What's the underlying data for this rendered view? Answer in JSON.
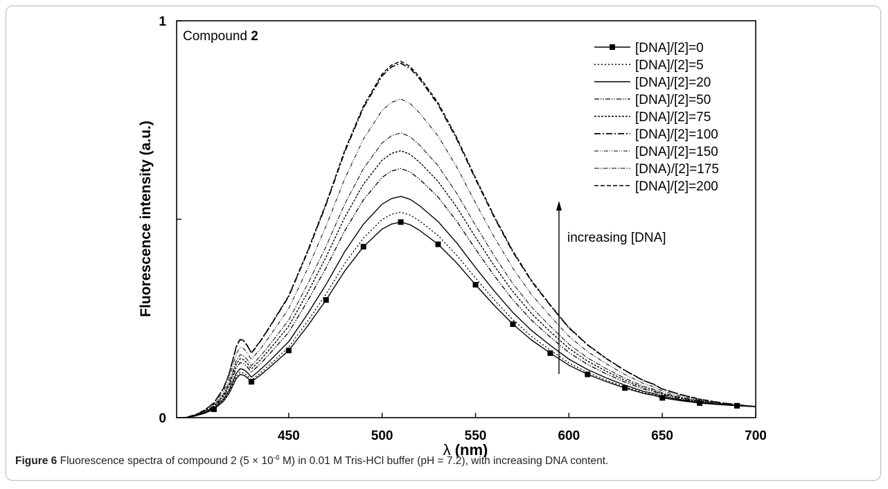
{
  "chart_data": {
    "type": "line",
    "annotation_compound": "Compound",
    "annotation_compound_number": "2",
    "arrow_label": "increasing [DNA]",
    "xlabel_symbol": "λ",
    "xlabel_unit": "(nm)",
    "ylabel": "Fluorescence intensity (a.u.)",
    "xlim": [
      390,
      700
    ],
    "ylim": [
      0,
      1
    ],
    "x_ticks": [
      450,
      500,
      550,
      600,
      650,
      700
    ],
    "x_tick_labels": [
      "450",
      "500",
      "550",
      "600",
      "650",
      "700"
    ],
    "y_tick_labels": [
      {
        "value": 0,
        "label": "0"
      },
      {
        "value": 1,
        "label": "1"
      }
    ],
    "y_unlabeled_ticks": [
      0.5
    ],
    "legend_position": "top-right",
    "grid": false,
    "peak_wavelength": 510,
    "baseline_at_700": 0.028,
    "x": [
      390,
      395,
      400,
      405,
      410,
      415,
      418,
      420,
      422,
      424,
      426,
      428,
      430,
      435,
      440,
      450,
      460,
      470,
      480,
      490,
      500,
      505,
      510,
      515,
      520,
      530,
      540,
      550,
      560,
      570,
      580,
      590,
      600,
      610,
      620,
      630,
      640,
      645,
      650,
      660,
      670,
      680,
      690,
      700
    ],
    "normalized_shape": [
      0.0,
      0.0,
      0.007,
      0.02,
      0.04,
      0.08,
      0.12,
      0.16,
      0.2,
      0.22,
      0.215,
      0.2,
      0.18,
      0.215,
      0.255,
      0.34,
      0.465,
      0.6,
      0.75,
      0.875,
      0.965,
      0.99,
      1.0,
      0.985,
      0.955,
      0.88,
      0.78,
      0.665,
      0.555,
      0.455,
      0.37,
      0.3,
      0.235,
      0.185,
      0.145,
      0.11,
      0.08,
      0.07,
      0.055,
      0.038,
      0.024,
      0.014,
      0.006,
      0.0
    ],
    "series": [
      {
        "name": "[DNA]/[2]=0",
        "peak": 0.51,
        "style": "solid-marker"
      },
      {
        "name": "[DNA]/[2]=5",
        "peak": 0.535,
        "style": "dotted"
      },
      {
        "name": "[DNA]/[2]=20",
        "peak": 0.575,
        "style": "solid"
      },
      {
        "name": "[DNA]/[2]=50",
        "peak": 0.645,
        "style": "dashdotdot"
      },
      {
        "name": "[DNA]/[2]=75",
        "peak": 0.69,
        "style": "shortdash"
      },
      {
        "name": "[DNA]/[2]=100",
        "peak": 0.91,
        "style": "dashdot"
      },
      {
        "name": "[DNA]/[2]=150",
        "peak": 0.82,
        "style": "dashdotdot-fine"
      },
      {
        "name": "[DNA)/[2]=175",
        "peak": 0.735,
        "style": "dashdot-fine"
      },
      {
        "name": "[DNA]/[2]=200",
        "peak": 0.915,
        "style": "dashed"
      }
    ],
    "marker_x": [
      410,
      430,
      450,
      470,
      490,
      510,
      530,
      550,
      570,
      590,
      610,
      630,
      650,
      670,
      690
    ]
  },
  "caption": {
    "label": "Figure 6",
    "text_before_exp": " Fluorescence spectra of compound 2 (5 × 10",
    "exponent": "-6",
    "text_after_exp": " M) in 0.01 M Tris-HCl buffer (pH = 7.2), with increasing DNA content."
  }
}
